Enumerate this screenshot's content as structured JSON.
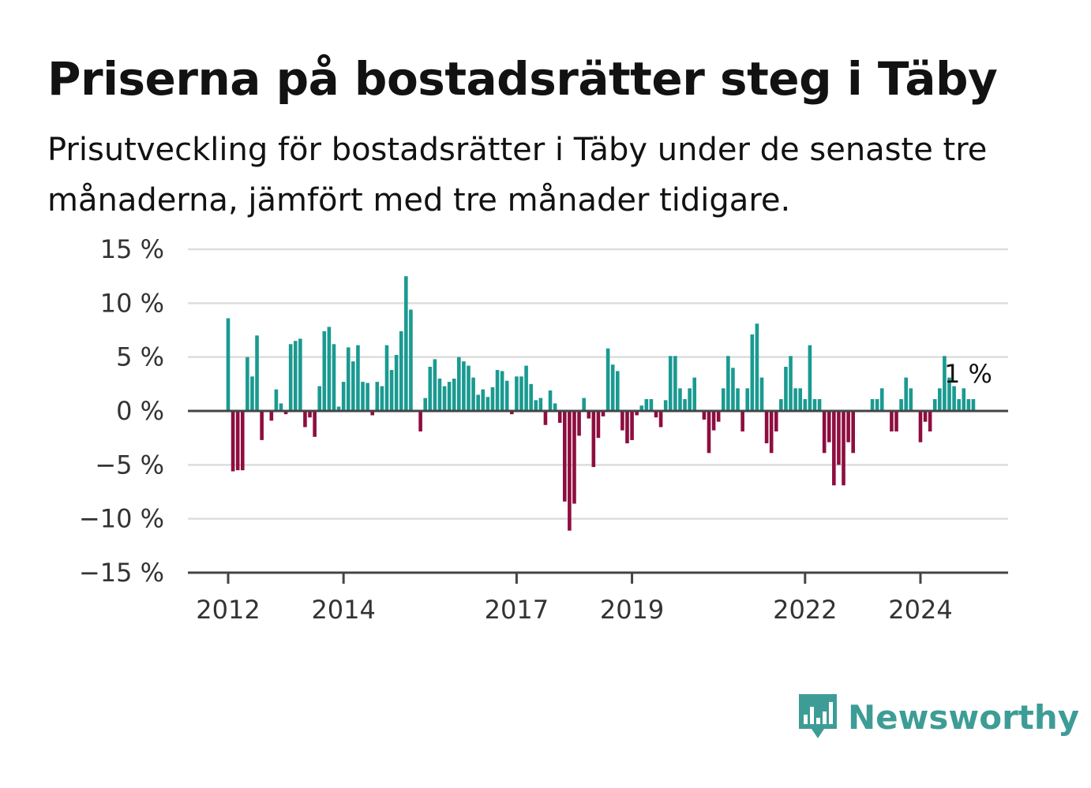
{
  "title": "Priserna på bostadsrätter steg i Täby",
  "subtitle": "Prisutveckling för bostadsrätter i Täby under de senaste tre månaderna, jämfört med tre månader tidigare.",
  "brand": {
    "name": "Newsworthy",
    "icon": "newsworthy-logo-icon",
    "color": "#3d9d96"
  },
  "colors": {
    "positive": "#1a9a91",
    "negative": "#8e0d3f",
    "grid": "#dddddd",
    "axis": "#444444"
  },
  "chart_data": {
    "type": "bar",
    "x_start": "2012-01",
    "x_unit": "month",
    "ylim": [
      -15,
      15
    ],
    "y_ticks": [
      15,
      10,
      5,
      0,
      -5,
      -10,
      -15
    ],
    "y_tick_labels": [
      "15 %",
      "10 %",
      "5 %",
      "0 %",
      "−5 %",
      "−10 %",
      "−15 %"
    ],
    "x_ticks": [
      "2012",
      "2014",
      "2017",
      "2019",
      "2022",
      "2024"
    ],
    "grid": true,
    "legend": "none",
    "annotation": "1 %",
    "values": [
      8.6,
      -5.6,
      -5.5,
      -5.5,
      5.0,
      3.2,
      7.0,
      -2.7,
      0,
      -0.9,
      2.0,
      0.7,
      -0.3,
      6.2,
      6.5,
      6.7,
      -1.5,
      -0.6,
      -2.4,
      2.3,
      7.4,
      7.8,
      6.2,
      0.4,
      2.7,
      5.9,
      4.6,
      6.1,
      2.7,
      2.6,
      -0.4,
      2.7,
      2.3,
      6.1,
      3.8,
      5.2,
      7.4,
      12.5,
      9.4,
      0,
      -1.9,
      1.2,
      4.1,
      4.8,
      3.0,
      2.3,
      2.7,
      3.0,
      5.0,
      4.6,
      4.2,
      3.1,
      1.5,
      2.0,
      1.3,
      2.2,
      3.8,
      3.7,
      2.8,
      -0.3,
      3.2,
      3.2,
      4.2,
      2.5,
      1.0,
      1.2,
      -1.3,
      1.9,
      0.7,
      -1.1,
      -8.4,
      -11.1,
      -8.6,
      -2.3,
      1.2,
      -0.7,
      -5.2,
      -2.5,
      -0.5,
      5.8,
      4.3,
      3.7,
      -1.8,
      -3.0,
      -2.7,
      -0.4,
      0.5,
      1.1,
      1.1,
      -0.6,
      -1.5,
      1.0,
      5.1,
      5.1,
      2.1,
      1.1,
      2.1,
      3.1,
      0,
      -0.8,
      -3.9,
      -1.8,
      -1.0,
      2.1,
      5.1,
      4.0,
      2.1,
      -1.9,
      2.1,
      7.1,
      8.1,
      3.1,
      -3.0,
      -3.9,
      -1.9,
      1.1,
      4.1,
      5.1,
      2.1,
      2.1,
      1.1,
      6.1,
      1.1,
      1.1,
      -3.9,
      -2.9,
      -6.9,
      -5.0,
      -6.9,
      -2.9,
      -3.9,
      0,
      0,
      0,
      1.1,
      1.1,
      2.1,
      0,
      -1.9,
      -1.9,
      1.1,
      3.1,
      2.1,
      0,
      -2.9,
      -1.0,
      -1.9,
      1.1,
      2.1,
      5.1,
      3.1,
      2.3,
      1.1,
      2.1,
      1.1,
      1.1
    ]
  }
}
